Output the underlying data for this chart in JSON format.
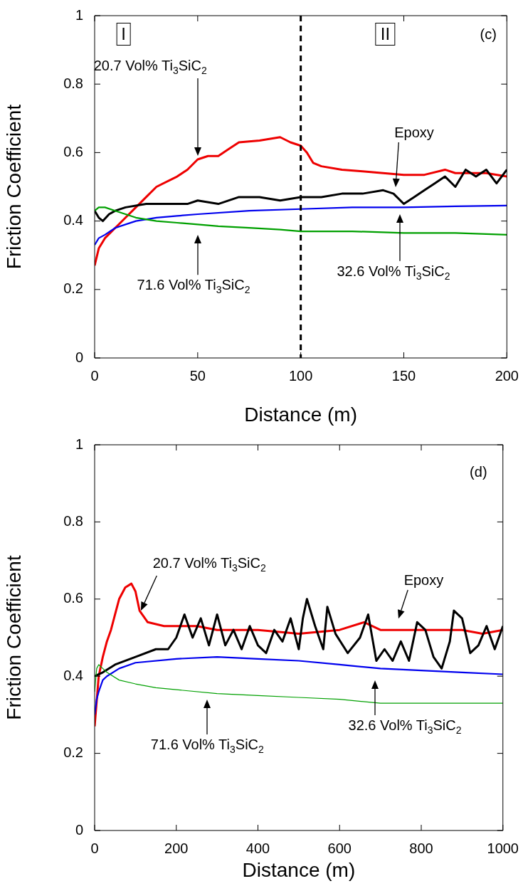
{
  "chart_data": [
    {
      "type": "line",
      "xlabel": "Distance (m)",
      "ylabel": "Friction Coefficient",
      "xlim": [
        0,
        200
      ],
      "ylim": [
        0,
        1
      ],
      "xticks": [
        0,
        50,
        100,
        150,
        200
      ],
      "yticks": [
        0,
        0.2,
        0.4,
        0.6,
        0.8,
        1
      ],
      "series": [
        {
          "color": "#00a000",
          "x": [
            0,
            2,
            5,
            10,
            15,
            20,
            30,
            40,
            50,
            60,
            75,
            90,
            100,
            125,
            150,
            175,
            200
          ],
          "values": [
            0.43,
            0.44,
            0.44,
            0.43,
            0.42,
            0.41,
            0.4,
            0.395,
            0.39,
            0.385,
            0.38,
            0.375,
            0.37,
            0.37,
            0.365,
            0.365,
            0.36
          ]
        },
        {
          "color": "#000000",
          "x": [
            0,
            2,
            4,
            7,
            10,
            15,
            25,
            35,
            45,
            50,
            60,
            70,
            80,
            90,
            100,
            110,
            120,
            130,
            140,
            145,
            150,
            155,
            160,
            165,
            170,
            175,
            180,
            185,
            190,
            195,
            200
          ],
          "values": [
            0.43,
            0.41,
            0.4,
            0.42,
            0.43,
            0.44,
            0.45,
            0.45,
            0.45,
            0.46,
            0.45,
            0.47,
            0.47,
            0.46,
            0.47,
            0.47,
            0.48,
            0.48,
            0.49,
            0.48,
            0.45,
            0.47,
            0.49,
            0.51,
            0.53,
            0.5,
            0.55,
            0.53,
            0.55,
            0.51,
            0.55
          ]
        },
        {
          "color": "#0000ee",
          "x": [
            0,
            2,
            5,
            10,
            15,
            20,
            30,
            40,
            50,
            75,
            100,
            125,
            150,
            175,
            200
          ],
          "values": [
            0.33,
            0.35,
            0.36,
            0.38,
            0.39,
            0.4,
            0.41,
            0.415,
            0.42,
            0.43,
            0.435,
            0.44,
            0.44,
            0.443,
            0.445
          ]
        },
        {
          "color": "#ee0000",
          "x": [
            0,
            2,
            5,
            10,
            15,
            20,
            25,
            30,
            40,
            45,
            50,
            55,
            60,
            65,
            70,
            80,
            90,
            95,
            100,
            103,
            106,
            110,
            120,
            130,
            140,
            150,
            160,
            170,
            175,
            180,
            190,
            200
          ],
          "values": [
            0.27,
            0.32,
            0.35,
            0.38,
            0.41,
            0.44,
            0.47,
            0.5,
            0.53,
            0.55,
            0.58,
            0.59,
            0.59,
            0.61,
            0.63,
            0.635,
            0.645,
            0.63,
            0.62,
            0.6,
            0.57,
            0.56,
            0.55,
            0.545,
            0.54,
            0.535,
            0.535,
            0.55,
            0.54,
            0.54,
            0.54,
            0.53
          ]
        }
      ],
      "ref_lines": [
        {
          "axis": "x",
          "value": 100,
          "color": "#000000",
          "line_style": "dashed"
        }
      ],
      "annotations": [
        "I",
        "II",
        "(c)",
        "20.7 Vol% Ti$_{3}$SiC$_{2}$",
        "Epoxy",
        "71.6 Vol% Ti$_{3}$SiC$_{2}$",
        "32.6 Vol% Ti$_{3}$SiC$_{2}$"
      ]
    },
    {
      "type": "line",
      "xlabel": "Distance (m)",
      "ylabel": "Friction Coefficient",
      "xlim": [
        0,
        1000
      ],
      "ylim": [
        0,
        1
      ],
      "xticks": [
        0,
        200,
        400,
        600,
        800,
        1000
      ],
      "yticks": [
        0,
        0.2,
        0.4,
        0.6,
        0.8,
        1
      ],
      "series": [
        {
          "color": "#00a000",
          "x": [
            0,
            5,
            10,
            20,
            30,
            60,
            100,
            150,
            200,
            300,
            400,
            500,
            600,
            700,
            800,
            900,
            1000
          ],
          "values": [
            0.36,
            0.42,
            0.43,
            0.42,
            0.41,
            0.39,
            0.38,
            0.37,
            0.365,
            0.355,
            0.35,
            0.345,
            0.34,
            0.33,
            0.33,
            0.33,
            0.33
          ]
        },
        {
          "color": "#000000",
          "x": [
            0,
            20,
            50,
            100,
            150,
            180,
            200,
            220,
            240,
            260,
            280,
            300,
            320,
            340,
            360,
            380,
            400,
            420,
            440,
            460,
            480,
            500,
            510,
            520,
            540,
            560,
            570,
            590,
            620,
            650,
            670,
            690,
            710,
            730,
            750,
            770,
            790,
            810,
            830,
            850,
            870,
            880,
            900,
            920,
            940,
            960,
            980,
            1000
          ],
          "values": [
            0.4,
            0.41,
            0.43,
            0.45,
            0.47,
            0.47,
            0.5,
            0.56,
            0.5,
            0.55,
            0.48,
            0.56,
            0.48,
            0.52,
            0.47,
            0.53,
            0.48,
            0.46,
            0.52,
            0.49,
            0.55,
            0.47,
            0.55,
            0.6,
            0.53,
            0.47,
            0.58,
            0.51,
            0.46,
            0.5,
            0.56,
            0.44,
            0.47,
            0.44,
            0.49,
            0.44,
            0.54,
            0.52,
            0.45,
            0.42,
            0.49,
            0.57,
            0.55,
            0.46,
            0.48,
            0.53,
            0.47,
            0.53
          ]
        },
        {
          "color": "#0000ee",
          "x": [
            0,
            5,
            10,
            20,
            30,
            60,
            100,
            200,
            300,
            400,
            500,
            600,
            700,
            800,
            900,
            1000
          ],
          "values": [
            0.3,
            0.34,
            0.36,
            0.39,
            0.4,
            0.42,
            0.435,
            0.445,
            0.45,
            0.445,
            0.44,
            0.43,
            0.42,
            0.415,
            0.41,
            0.405
          ]
        },
        {
          "color": "#ee0000",
          "x": [
            0,
            10,
            20,
            30,
            40,
            50,
            60,
            75,
            90,
            100,
            110,
            130,
            170,
            250,
            300,
            400,
            500,
            600,
            660,
            700,
            800,
            900,
            950,
            1000
          ],
          "values": [
            0.27,
            0.4,
            0.45,
            0.49,
            0.52,
            0.56,
            0.6,
            0.63,
            0.64,
            0.62,
            0.57,
            0.54,
            0.53,
            0.53,
            0.52,
            0.52,
            0.51,
            0.52,
            0.54,
            0.52,
            0.52,
            0.52,
            0.51,
            0.52
          ]
        }
      ],
      "annotations": [
        "(d)",
        "20.7 Vol% Ti$_{3}$SiC$_{2}$",
        "Epoxy",
        "32.6 Vol% Ti$_{3}$SiC$_{2}$",
        "71.6 Vol% Ti$_{3}$SiC$_{2}$"
      ]
    }
  ]
}
